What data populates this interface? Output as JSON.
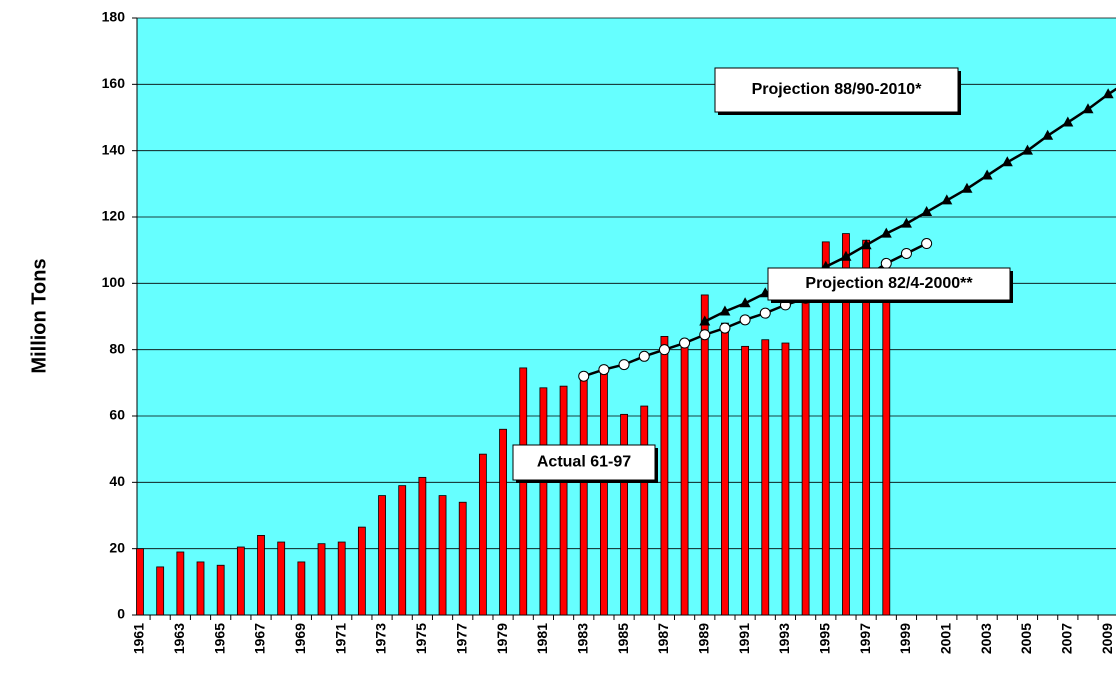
{
  "chart_data": {
    "type": "bar_line",
    "y_label": "Million Tons",
    "categories": [
      "1961",
      null,
      "1963",
      null,
      "1965",
      null,
      "1967",
      null,
      "1969",
      null,
      "1971",
      null,
      "1973",
      null,
      "1975",
      null,
      "1977",
      null,
      "1979",
      null,
      "1981",
      null,
      "1983",
      null,
      "1985",
      null,
      "1987",
      null,
      "1989",
      null,
      "1991",
      null,
      "1993",
      null,
      "1995",
      null,
      "1997",
      null,
      "1999",
      null,
      "2001",
      null,
      "2003",
      null,
      "2005",
      null,
      "2007",
      null,
      "2009",
      null
    ],
    "series": [
      {
        "name": "Actual 61-97",
        "kind": "bar",
        "color": "#ff0000",
        "values": [
          20,
          14.5,
          19,
          16,
          15,
          20.5,
          24,
          22,
          16,
          21.5,
          22,
          26.5,
          36,
          39,
          41.5,
          36,
          34,
          48.5,
          56,
          74.5,
          68.5,
          69,
          71,
          74,
          60.5,
          63,
          84,
          82,
          96.5,
          88,
          81,
          83,
          82,
          96,
          112.5,
          115,
          113,
          104,
          null,
          null,
          null,
          null,
          null,
          null,
          null,
          null,
          null,
          null,
          null,
          null
        ]
      },
      {
        "name": "Projection 82/4-2000**",
        "kind": "line",
        "marker": "circle",
        "color": "#000000",
        "values": [
          null,
          null,
          null,
          null,
          null,
          null,
          null,
          null,
          null,
          null,
          null,
          null,
          null,
          null,
          null,
          null,
          null,
          null,
          null,
          null,
          null,
          null,
          72,
          74,
          75.5,
          78,
          80,
          82,
          84.5,
          86.5,
          89,
          91,
          93.5,
          95.5,
          97.5,
          100,
          102,
          106,
          109,
          112,
          null,
          null,
          null,
          null,
          null,
          null,
          null,
          null,
          null,
          null
        ]
      },
      {
        "name": "Projection 88/90-2010*",
        "kind": "line",
        "marker": "triangle",
        "color": "#000000",
        "values": [
          null,
          null,
          null,
          null,
          null,
          null,
          null,
          null,
          null,
          null,
          null,
          null,
          null,
          null,
          null,
          null,
          null,
          null,
          null,
          null,
          null,
          null,
          null,
          null,
          null,
          null,
          null,
          null,
          88.5,
          91.5,
          94,
          97,
          99,
          102,
          105,
          108,
          111.5,
          115,
          118,
          121.5,
          125,
          128.5,
          132.5,
          136.5,
          140,
          144.5,
          148.5,
          152.5,
          157,
          161
        ]
      }
    ],
    "ylim": [
      0,
      180
    ],
    "yticks": [
      0,
      20,
      40,
      60,
      80,
      100,
      120,
      140,
      160,
      180
    ],
    "grid": true,
    "background": "#66ffff"
  }
}
